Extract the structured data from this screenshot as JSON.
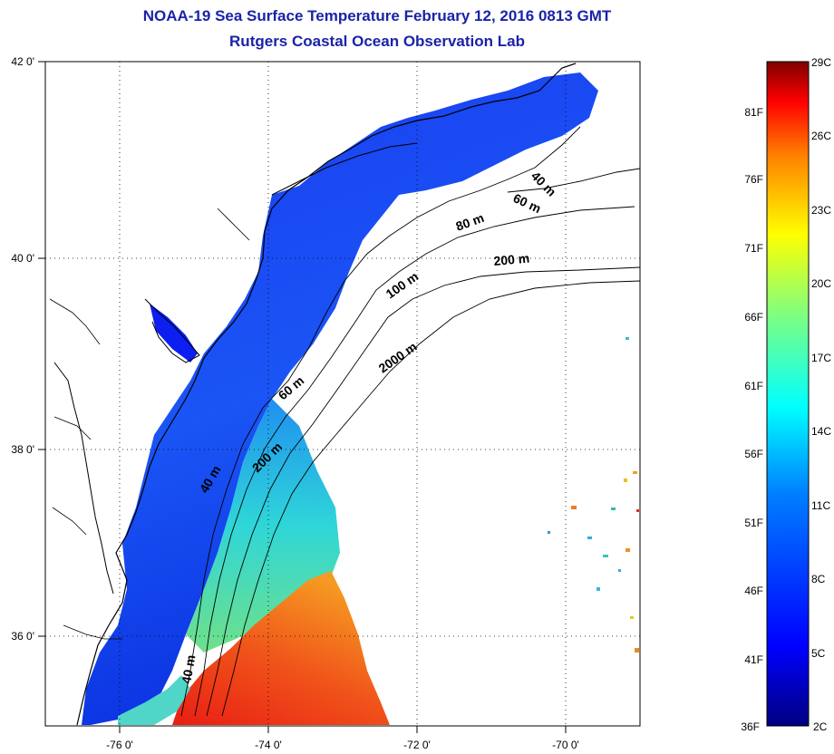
{
  "title": "NOAA-19 Sea Surface Temperature February 12, 2016 0813 GMT",
  "subtitle": "Rutgers Coastal Ocean Observation Lab",
  "map": {
    "lon_ticks": [
      "-76 0'",
      "-74 0'",
      "-72 0'",
      "-70 0'"
    ],
    "lat_ticks": [
      "42 0'",
      "40 0'",
      "38 0'",
      "36 0'"
    ],
    "contours": [
      "40 m",
      "60 m",
      "80 m",
      "200 m",
      "100 m",
      "2000 m",
      "60 m",
      "200 m",
      "40 m",
      "40 m"
    ]
  },
  "colorbar": {
    "celsius": [
      "29C",
      "26C",
      "23C",
      "20C",
      "17C",
      "14C",
      "11C",
      "8C",
      "5C",
      "2C"
    ],
    "fahrenheit": [
      "81F",
      "76F",
      "71F",
      "66F",
      "61F",
      "56F",
      "51F",
      "46F",
      "41F",
      "36F"
    ],
    "colors": [
      "#00007f",
      "#0000ff",
      "#007fff",
      "#00ffff",
      "#7fff7f",
      "#ffff00",
      "#ff7f00",
      "#ff0000",
      "#7f0000"
    ]
  }
}
